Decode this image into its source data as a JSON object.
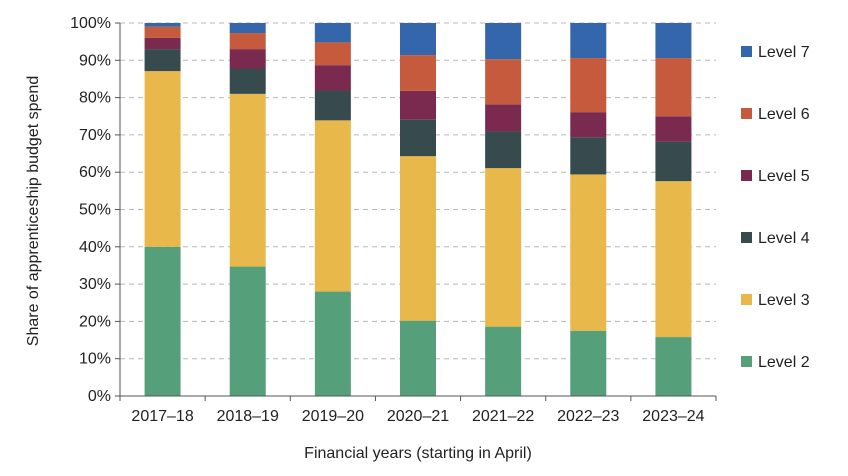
{
  "chart_data": {
    "type": "bar",
    "stacked": true,
    "title": "",
    "xlabel": "Financial years (starting in April)",
    "ylabel": "Share of apprenticeship budget spend",
    "categories": [
      "2017–18",
      "2018–19",
      "2019–20",
      "2020–21",
      "2021–22",
      "2022–23",
      "2023–24"
    ],
    "ylim": [
      0,
      100
    ],
    "y_tick_values": [
      0,
      10,
      20,
      30,
      40,
      50,
      60,
      70,
      80,
      90,
      100
    ],
    "y_tick_labels": [
      "0%",
      "10%",
      "20%",
      "30%",
      "40%",
      "50%",
      "60%",
      "70%",
      "80%",
      "90%",
      "100%"
    ],
    "grid": "horizontal dashed",
    "legend_position": "right",
    "series": [
      {
        "name": "Level 2",
        "color": "#55a07b",
        "values": [
          40.0,
          34.7,
          28.0,
          20.2,
          18.6,
          17.5,
          15.8
        ]
      },
      {
        "name": "Level 3",
        "color": "#e9b84a",
        "values": [
          47.1,
          46.3,
          45.9,
          44.1,
          42.5,
          41.9,
          41.8
        ]
      },
      {
        "name": "Level 4",
        "color": "#374b4f",
        "values": [
          5.9,
          6.8,
          8.0,
          9.9,
          9.8,
          10.0,
          10.6
        ]
      },
      {
        "name": "Level 5",
        "color": "#7b2a4f",
        "values": [
          3.0,
          5.2,
          6.8,
          7.6,
          7.3,
          6.7,
          6.8
        ]
      },
      {
        "name": "Level 6",
        "color": "#c65a3c",
        "values": [
          3.0,
          4.3,
          6.1,
          9.6,
          12.1,
          14.5,
          15.6
        ]
      },
      {
        "name": "Level 7",
        "color": "#3466ab",
        "values": [
          1.0,
          2.7,
          5.2,
          8.6,
          9.7,
          9.4,
          9.4
        ]
      }
    ]
  }
}
